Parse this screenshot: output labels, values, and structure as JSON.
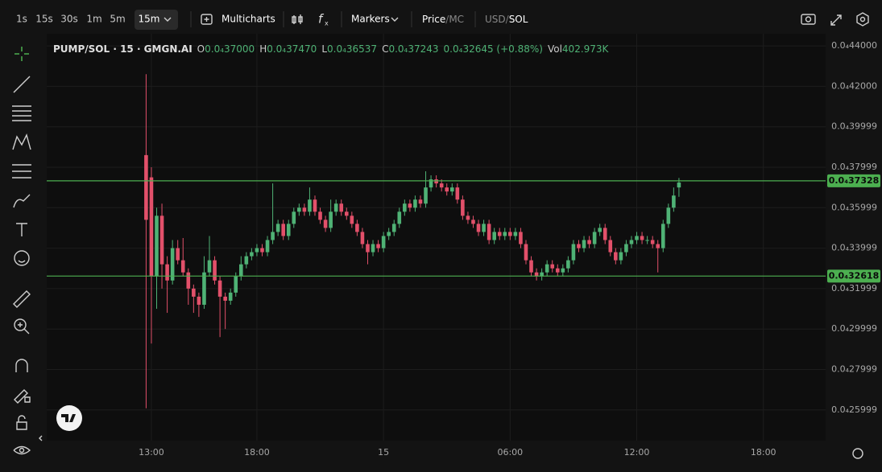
{
  "toolbar": {
    "intervals": [
      "1s",
      "15s",
      "30s",
      "1m",
      "5m",
      "15m"
    ],
    "multicharts": "Multicharts",
    "markers": "Markers",
    "price": "Price",
    "price_sep": "/",
    "mc": "MC",
    "usd": "USD",
    "usd_sep": "/",
    "sol": "SOL"
  },
  "legend": {
    "symbol": "PUMP/SOL · 15 · GMGN.AI",
    "open_label": "O",
    "open": "0.0₄37000",
    "high_label": "H",
    "high": "0.0₄37470",
    "low_label": "L",
    "low": "0.0₄36537",
    "close_label": "C",
    "close": "0.0₄37243",
    "change": "0.0₄32645 (+0.88%)",
    "volume_label": "Vol",
    "volume": "402.973K"
  },
  "chart_data": {
    "type": "candlestick",
    "up_color": "#4fb275",
    "down_color": "#e2506a",
    "grid": true,
    "x": [
      12.75,
      13,
      13.25,
      13.5,
      13.75,
      14,
      14.25,
      14.5,
      14.75,
      15,
      15.25,
      15.5,
      15.75,
      16,
      16.25,
      16.5,
      16.75,
      17,
      17.25,
      17.5,
      17.75,
      18,
      18.25,
      18.5,
      18.75,
      19,
      19.25,
      19.5,
      19.75,
      20,
      20.25,
      20.5,
      20.75,
      21,
      21.25,
      21.5,
      21.75,
      22,
      22.25,
      22.5,
      22.75,
      23,
      23.25,
      23.5,
      23.75,
      24,
      24.25,
      24.5,
      24.75,
      25,
      25.25,
      25.5,
      25.75,
      26,
      26.25,
      26.5,
      26.75,
      27,
      27.25,
      27.5,
      27.75,
      28,
      28.25,
      28.5,
      28.75,
      29,
      29.25,
      29.5,
      29.75,
      30,
      30.25,
      30.5,
      30.75,
      31,
      31.25,
      31.5,
      31.75,
      32,
      32.25,
      32.5,
      32.75,
      33,
      33.25,
      33.5,
      33.75,
      34,
      34.25,
      34.5,
      34.75,
      35,
      35.25,
      35.5,
      35.75,
      36,
      36.25,
      36.5,
      36.75,
      37,
      37.25,
      37.5,
      37.75,
      38
    ],
    "open": [
      3.86e-05,
      3.75e-05,
      3.26e-05,
      3.56e-05,
      3.32e-05,
      3.24e-05,
      3.4e-05,
      3.34e-05,
      3.28e-05,
      3.2e-05,
      3.16e-05,
      3.12e-05,
      3.28e-05,
      3.34e-05,
      3.24e-05,
      3.16e-05,
      3.14e-05,
      3.18e-05,
      3.26e-05,
      3.32e-05,
      3.36e-05,
      3.38e-05,
      3.4e-05,
      3.38e-05,
      3.44e-05,
      3.48e-05,
      3.52e-05,
      3.46e-05,
      3.52e-05,
      3.58e-05,
      3.6e-05,
      3.58e-05,
      3.64e-05,
      3.58e-05,
      3.54e-05,
      3.5e-05,
      3.58e-05,
      3.62e-05,
      3.58e-05,
      3.56e-05,
      3.52e-05,
      3.48e-05,
      3.42e-05,
      3.38e-05,
      3.42e-05,
      3.4e-05,
      3.46e-05,
      3.48e-05,
      3.52e-05,
      3.58e-05,
      3.62e-05,
      3.6e-05,
      3.64e-05,
      3.62e-05,
      3.7e-05,
      3.74e-05,
      3.72e-05,
      3.7e-05,
      3.68e-05,
      3.7e-05,
      3.64e-05,
      3.56e-05,
      3.54e-05,
      3.52e-05,
      3.48e-05,
      3.52e-05,
      3.44e-05,
      3.48e-05,
      3.46e-05,
      3.48e-05,
      3.46e-05,
      3.48e-05,
      3.42e-05,
      3.34e-05,
      3.28e-05,
      3.26e-05,
      3.28e-05,
      3.32e-05,
      3.3e-05,
      3.28e-05,
      3.3e-05,
      3.34e-05,
      3.42e-05,
      3.4e-05,
      3.44e-05,
      3.42e-05,
      3.48e-05,
      3.5e-05,
      3.44e-05,
      3.38e-05,
      3.34e-05,
      3.38e-05,
      3.42e-05,
      3.44e-05,
      3.46e-05,
      3.44e-05,
      3.44e-05,
      3.42e-05,
      3.4e-05,
      3.52e-05,
      3.6e-05,
      3.7e-05
    ],
    "high": [
      4.26e-05,
      3.8e-05,
      3.6e-05,
      3.62e-05,
      3.36e-05,
      3.44e-05,
      3.44e-05,
      3.45e-05,
      3.3e-05,
      3.22e-05,
      3.18e-05,
      3.36e-05,
      3.46e-05,
      3.36e-05,
      3.26e-05,
      3.18e-05,
      3.2e-05,
      3.28e-05,
      3.36e-05,
      3.38e-05,
      3.4e-05,
      3.42e-05,
      3.42e-05,
      3.46e-05,
      3.72e-05,
      3.54e-05,
      3.54e-05,
      3.54e-05,
      3.6e-05,
      3.62e-05,
      3.62e-05,
      3.7e-05,
      3.66e-05,
      3.6e-05,
      3.56e-05,
      3.64e-05,
      3.64e-05,
      3.64e-05,
      3.6e-05,
      3.58e-05,
      3.54e-05,
      3.5e-05,
      3.44e-05,
      3.44e-05,
      3.44e-05,
      3.48e-05,
      3.5e-05,
      3.54e-05,
      3.6e-05,
      3.64e-05,
      3.64e-05,
      3.66e-05,
      3.66e-05,
      3.78e-05,
      3.76e-05,
      3.76e-05,
      3.74e-05,
      3.72e-05,
      3.72e-05,
      3.72e-05,
      3.66e-05,
      3.58e-05,
      3.56e-05,
      3.54e-05,
      3.54e-05,
      3.54e-05,
      3.5e-05,
      3.5e-05,
      3.5e-05,
      3.5e-05,
      3.5e-05,
      3.5e-05,
      3.44e-05,
      3.36e-05,
      3.3e-05,
      3.3e-05,
      3.34e-05,
      3.34e-05,
      3.32e-05,
      3.32e-05,
      3.36e-05,
      3.44e-05,
      3.44e-05,
      3.46e-05,
      3.46e-05,
      3.5e-05,
      3.52e-05,
      3.52e-05,
      3.46e-05,
      3.4e-05,
      3.4e-05,
      3.44e-05,
      3.46e-05,
      3.48e-05,
      3.48e-05,
      3.46e-05,
      3.46e-05,
      3.44e-05,
      3.54e-05,
      3.62e-05,
      3.7e-05,
      3.747e-05
    ],
    "low": [
      2.608e-05,
      2.928e-05,
      3.1e-05,
      3.2e-05,
      3.08e-05,
      3.22e-05,
      3.32e-05,
      3.26e-05,
      3.12e-05,
      3.08e-05,
      3.06e-05,
      3.1e-05,
      3.26e-05,
      3.22e-05,
      2.96e-05,
      3e-05,
      3.12e-05,
      3.16e-05,
      3.24e-05,
      3.3e-05,
      3.34e-05,
      3.36e-05,
      3.36e-05,
      3.36e-05,
      3.42e-05,
      3.46e-05,
      3.44e-05,
      3.44e-05,
      3.5e-05,
      3.56e-05,
      3.56e-05,
      3.56e-05,
      3.56e-05,
      3.52e-05,
      3.48e-05,
      3.48e-05,
      3.56e-05,
      3.56e-05,
      3.54e-05,
      3.5e-05,
      3.46e-05,
      3.4e-05,
      3.32e-05,
      3.36e-05,
      3.38e-05,
      3.38e-05,
      3.44e-05,
      3.46e-05,
      3.5e-05,
      3.56e-05,
      3.58e-05,
      3.58e-05,
      3.6e-05,
      3.6e-05,
      3.68e-05,
      3.7e-05,
      3.68e-05,
      3.66e-05,
      3.66e-05,
      3.62e-05,
      3.54e-05,
      3.52e-05,
      3.5e-05,
      3.46e-05,
      3.46e-05,
      3.42e-05,
      3.42e-05,
      3.44e-05,
      3.44e-05,
      3.44e-05,
      3.44e-05,
      3.4e-05,
      3.32e-05,
      3.26e-05,
      3.24e-05,
      3.24e-05,
      3.26e-05,
      3.28e-05,
      3.26e-05,
      3.26e-05,
      3.28e-05,
      3.32e-05,
      3.38e-05,
      3.38e-05,
      3.4e-05,
      3.4e-05,
      3.46e-05,
      3.42e-05,
      3.36e-05,
      3.32e-05,
      3.32e-05,
      3.36e-05,
      3.4e-05,
      3.42e-05,
      3.42e-05,
      3.42e-05,
      3.4e-05,
      3.28e-05,
      3.38e-05,
      3.5e-05,
      3.58e-05,
      3.6537e-05
    ],
    "close": [
      3.54e-05,
      3.26e-05,
      3.56e-05,
      3.32e-05,
      3.24e-05,
      3.4e-05,
      3.34e-05,
      3.28e-05,
      3.2e-05,
      3.16e-05,
      3.12e-05,
      3.28e-05,
      3.34e-05,
      3.24e-05,
      3.16e-05,
      3.14e-05,
      3.18e-05,
      3.26e-05,
      3.32e-05,
      3.36e-05,
      3.38e-05,
      3.4e-05,
      3.38e-05,
      3.44e-05,
      3.48e-05,
      3.52e-05,
      3.46e-05,
      3.52e-05,
      3.58e-05,
      3.6e-05,
      3.58e-05,
      3.64e-05,
      3.58e-05,
      3.54e-05,
      3.5e-05,
      3.58e-05,
      3.62e-05,
      3.58e-05,
      3.56e-05,
      3.52e-05,
      3.48e-05,
      3.42e-05,
      3.38e-05,
      3.42e-05,
      3.4e-05,
      3.46e-05,
      3.48e-05,
      3.52e-05,
      3.58e-05,
      3.62e-05,
      3.6e-05,
      3.64e-05,
      3.62e-05,
      3.7e-05,
      3.74e-05,
      3.72e-05,
      3.7e-05,
      3.68e-05,
      3.7e-05,
      3.64e-05,
      3.56e-05,
      3.54e-05,
      3.52e-05,
      3.48e-05,
      3.52e-05,
      3.44e-05,
      3.48e-05,
      3.46e-05,
      3.48e-05,
      3.46e-05,
      3.48e-05,
      3.42e-05,
      3.34e-05,
      3.28e-05,
      3.26e-05,
      3.28e-05,
      3.32e-05,
      3.3e-05,
      3.28e-05,
      3.3e-05,
      3.34e-05,
      3.42e-05,
      3.4e-05,
      3.44e-05,
      3.42e-05,
      3.48e-05,
      3.5e-05,
      3.44e-05,
      3.38e-05,
      3.34e-05,
      3.38e-05,
      3.42e-05,
      3.44e-05,
      3.46e-05,
      3.44e-05,
      3.44e-05,
      3.42e-05,
      3.4e-05,
      3.52e-05,
      3.6e-05,
      3.66e-05,
      3.7243e-05
    ],
    "xlim": [
      8.04,
      44.95
    ],
    "xticks": [
      {
        "value": 13,
        "label": "13:00"
      },
      {
        "value": 18,
        "label": "18:00"
      },
      {
        "value": 24,
        "label": "15"
      },
      {
        "value": 30,
        "label": "06:00"
      },
      {
        "value": 36,
        "label": "12:00"
      },
      {
        "value": 42,
        "label": "18:00"
      }
    ],
    "ylim": [
      2.448e-05,
      4.46e-05
    ],
    "yticks": [
      {
        "value": 4.4e-05,
        "label": "0.0₄44000"
      },
      {
        "value": 4.2e-05,
        "label": "0.0₄42000"
      },
      {
        "value": 3.9999e-05,
        "label": "0.0₄39999"
      },
      {
        "value": 3.7999e-05,
        "label": "0.0₄37999"
      },
      {
        "value": 3.5999e-05,
        "label": "0.0₄35999"
      },
      {
        "value": 3.3999e-05,
        "label": "0.0₄33999"
      },
      {
        "value": 3.1999e-05,
        "label": "0.0₄31999"
      },
      {
        "value": 2.9999e-05,
        "label": "0.0₄29999"
      },
      {
        "value": 2.7999e-05,
        "label": "0.0₄27999"
      },
      {
        "value": 2.5999e-05,
        "label": "0.0₄25999"
      }
    ],
    "price_lines": [
      {
        "value": 3.7328e-05,
        "label": "0.0₄37328",
        "color": "#4caf50"
      },
      {
        "value": 3.2618e-05,
        "label": "0.0₄32618",
        "color": "#4caf50"
      }
    ]
  }
}
